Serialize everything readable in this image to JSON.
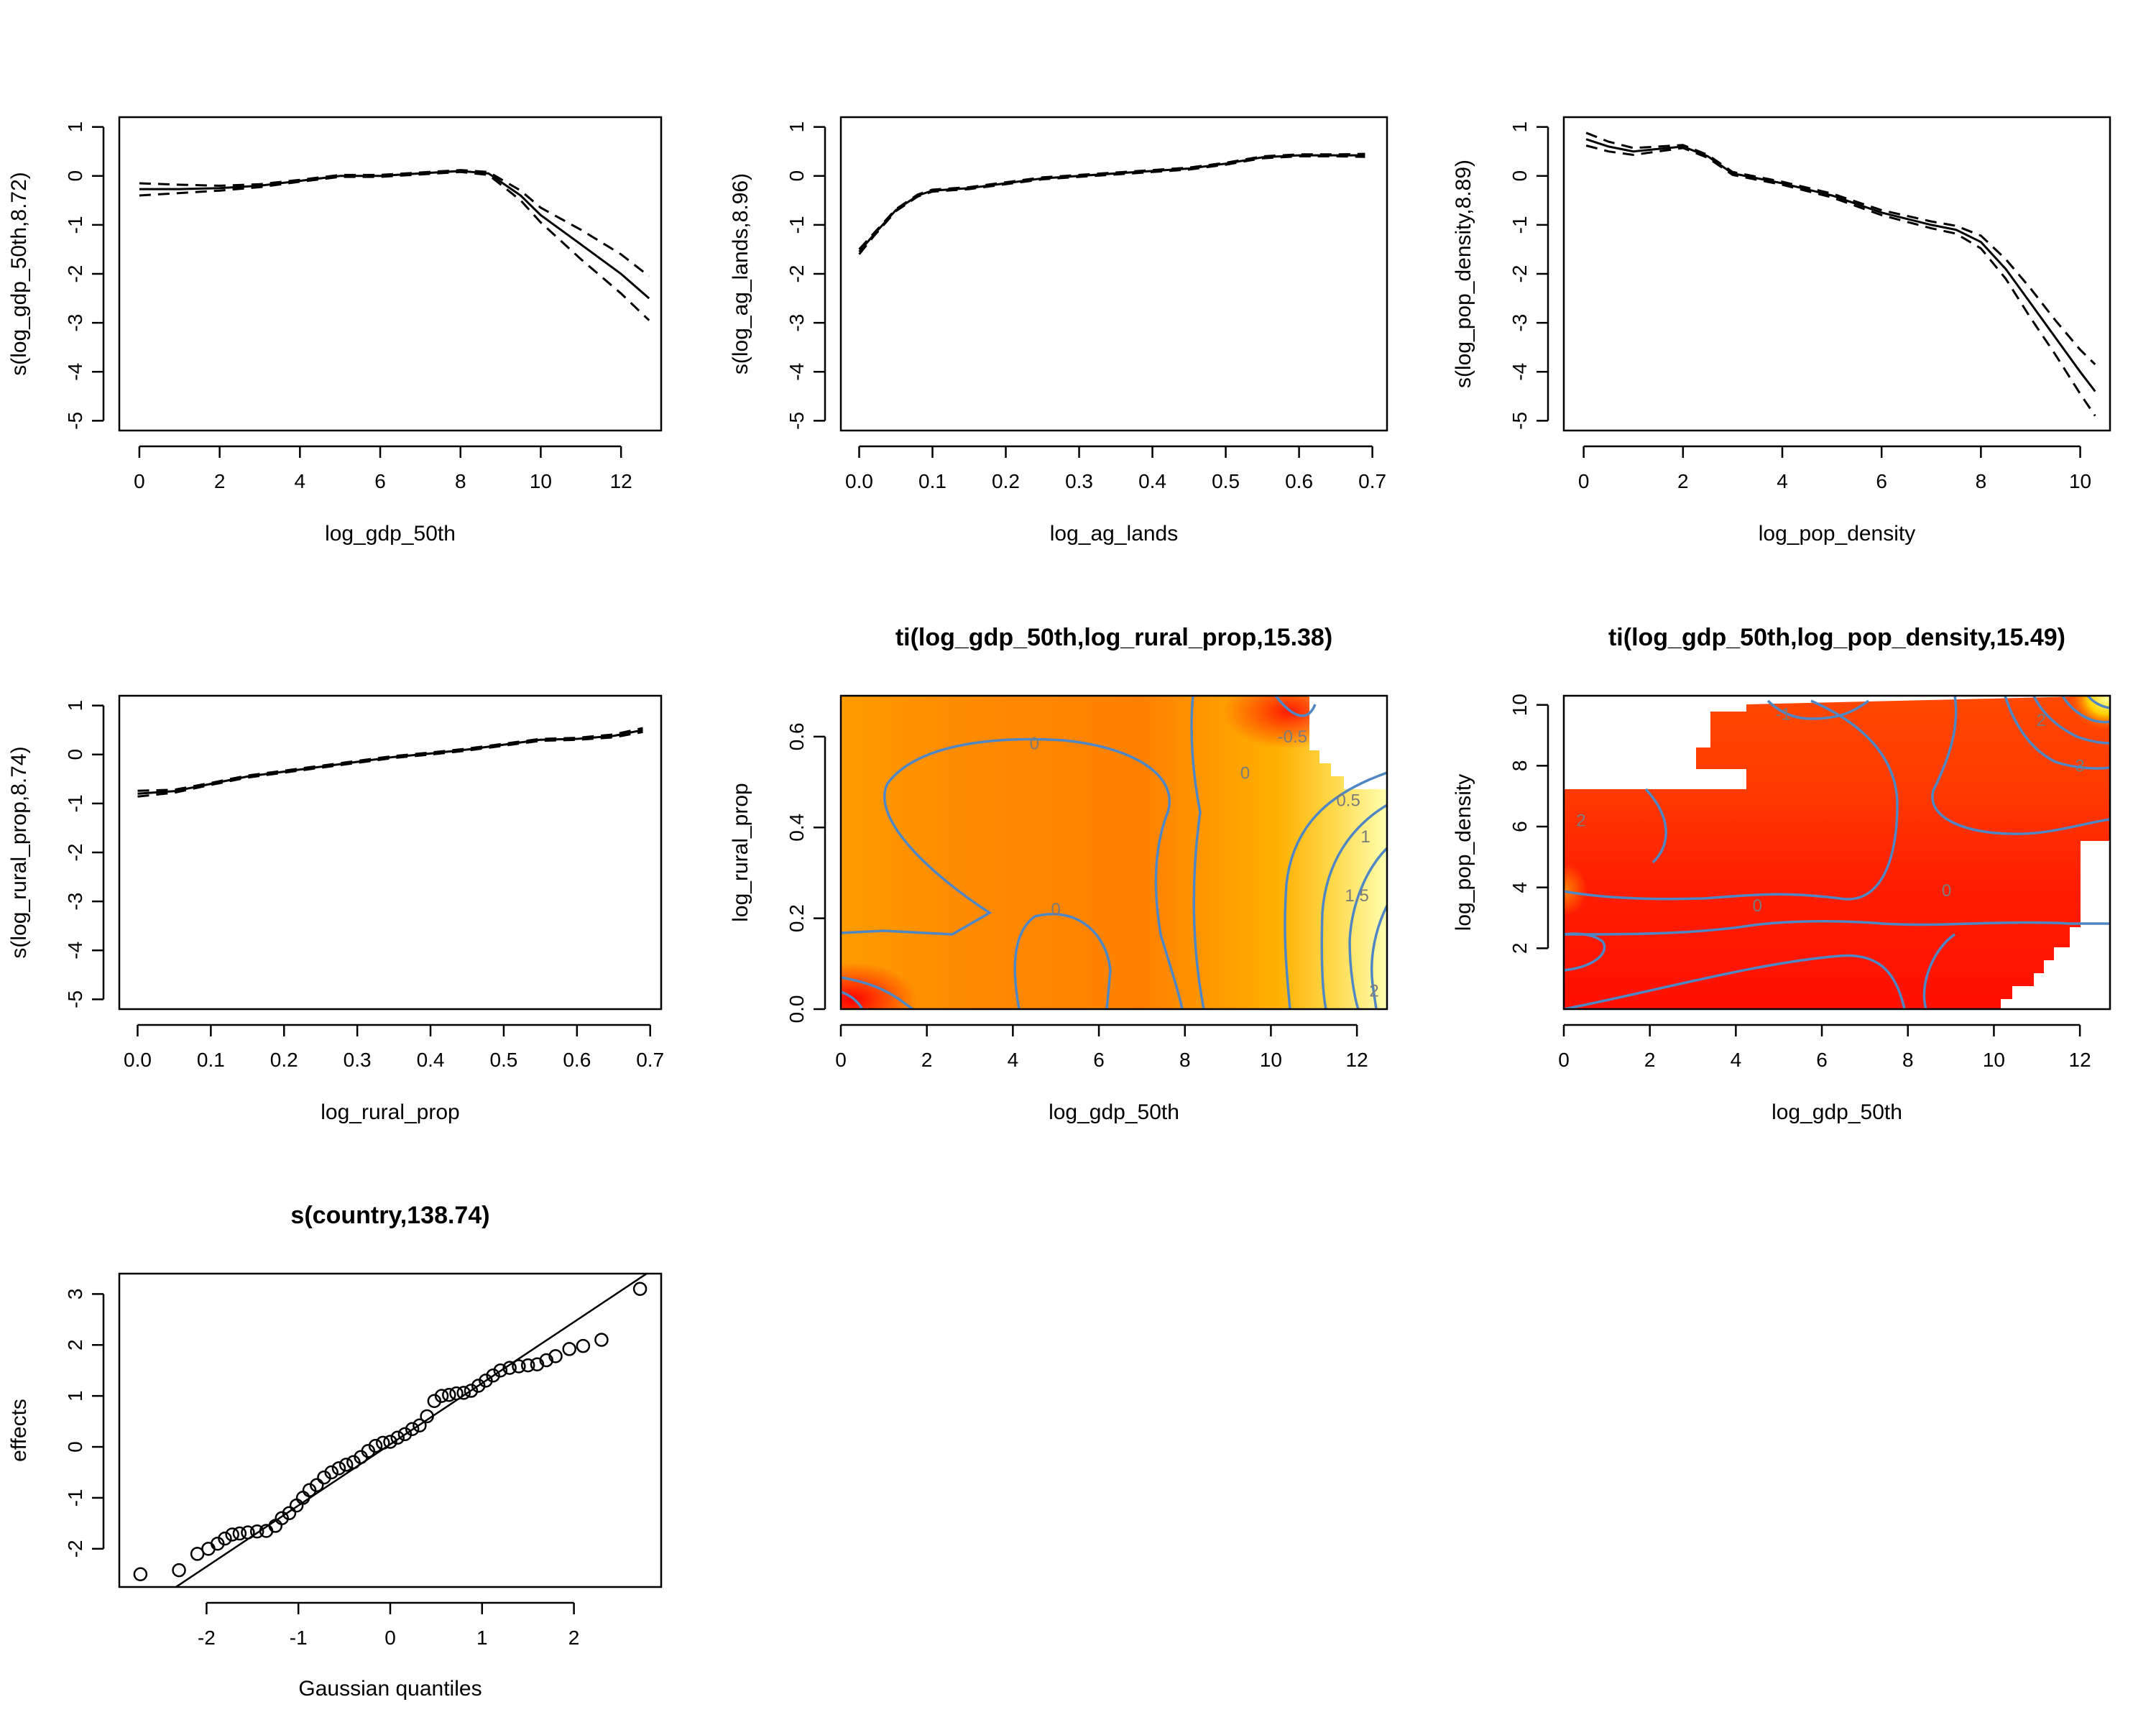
{
  "colors": {
    "frame": "#000000",
    "contour": "#4f87c4",
    "contour_label": "#7b7b7b",
    "heat_low": "#ff0000",
    "heat_mid": "#ff8c00",
    "heat_high": "#ffff9a"
  },
  "chart_data": [
    {
      "id": "p1",
      "type": "line",
      "title": "",
      "xlabel": "log_gdp_50th",
      "ylabel": "s(log_gdp_50th,8.72)",
      "xlim": [
        -0.5,
        13
      ],
      "ylim": [
        -5.2,
        1.2
      ],
      "xticks": [
        0,
        2,
        4,
        6,
        8,
        10,
        12
      ],
      "xtick_labels": [
        "0",
        "2",
        "4",
        "6",
        "8",
        "10",
        "12"
      ],
      "yticks": [
        1,
        0,
        -1,
        -2,
        -3,
        -4,
        -5
      ],
      "ytick_labels": [
        "1",
        "0",
        "-1",
        "-2",
        "-3",
        "-4",
        "-5"
      ],
      "series": [
        {
          "name": "fit",
          "dash": "solid",
          "x": [
            0,
            1,
            2,
            3,
            4,
            5,
            6,
            7,
            8,
            8.7,
            9.5,
            10,
            11,
            12,
            12.7
          ],
          "y": [
            -0.27,
            -0.27,
            -0.25,
            -0.2,
            -0.1,
            0,
            0,
            0.05,
            0.1,
            0.05,
            -0.4,
            -0.8,
            -1.4,
            -2.0,
            -2.5
          ]
        },
        {
          "name": "upper",
          "dash": "dashed",
          "x": [
            0,
            1,
            2,
            3,
            4,
            5,
            6,
            7,
            8,
            8.7,
            9.5,
            10,
            11,
            12,
            12.7
          ],
          "y": [
            -0.15,
            -0.18,
            -0.2,
            -0.17,
            -0.08,
            0.02,
            0.02,
            0.07,
            0.12,
            0.08,
            -0.3,
            -0.65,
            -1.1,
            -1.6,
            -2.05
          ]
        },
        {
          "name": "lower",
          "dash": "dashed",
          "x": [
            0,
            1,
            2,
            3,
            4,
            5,
            6,
            7,
            8,
            8.7,
            9.5,
            10,
            11,
            12,
            12.7
          ],
          "y": [
            -0.4,
            -0.35,
            -0.3,
            -0.23,
            -0.12,
            -0.02,
            -0.02,
            0.03,
            0.08,
            0.02,
            -0.5,
            -0.95,
            -1.7,
            -2.4,
            -2.95
          ]
        }
      ]
    },
    {
      "id": "p2",
      "type": "line",
      "title": "",
      "xlabel": "log_ag_lands",
      "ylabel": "s(log_ag_lands,8.96)",
      "xlim": [
        -0.025,
        0.72
      ],
      "ylim": [
        -5.2,
        1.2
      ],
      "xticks": [
        0,
        0.1,
        0.2,
        0.3,
        0.4,
        0.5,
        0.6,
        0.7
      ],
      "xtick_labels": [
        "0.0",
        "0.1",
        "0.2",
        "0.3",
        "0.4",
        "0.5",
        "0.6",
        "0.7"
      ],
      "yticks": [
        1,
        0,
        -1,
        -2,
        -3,
        -4,
        -5
      ],
      "ytick_labels": [
        "1",
        "0",
        "-1",
        "-2",
        "-3",
        "-4",
        "-5"
      ],
      "series": [
        {
          "name": "fit",
          "dash": "solid",
          "x": [
            0,
            0.02,
            0.05,
            0.08,
            0.1,
            0.15,
            0.2,
            0.25,
            0.3,
            0.35,
            0.4,
            0.45,
            0.5,
            0.55,
            0.6,
            0.65,
            0.69
          ],
          "y": [
            -1.55,
            -1.2,
            -0.7,
            -0.4,
            -0.3,
            -0.25,
            -0.15,
            -0.05,
            0,
            0.05,
            0.1,
            0.15,
            0.25,
            0.38,
            0.42,
            0.42,
            0.42
          ]
        },
        {
          "name": "upper",
          "dash": "dashed",
          "x": [
            0,
            0.02,
            0.05,
            0.08,
            0.1,
            0.15,
            0.2,
            0.25,
            0.3,
            0.35,
            0.4,
            0.45,
            0.5,
            0.55,
            0.6,
            0.65,
            0.69
          ],
          "y": [
            -1.5,
            -1.17,
            -0.68,
            -0.38,
            -0.28,
            -0.23,
            -0.13,
            -0.03,
            0.02,
            0.07,
            0.12,
            0.17,
            0.27,
            0.4,
            0.44,
            0.44,
            0.45
          ]
        },
        {
          "name": "lower",
          "dash": "dashed",
          "x": [
            0,
            0.02,
            0.05,
            0.08,
            0.1,
            0.15,
            0.2,
            0.25,
            0.3,
            0.35,
            0.4,
            0.45,
            0.5,
            0.55,
            0.6,
            0.65,
            0.69
          ],
          "y": [
            -1.6,
            -1.23,
            -0.72,
            -0.42,
            -0.32,
            -0.27,
            -0.17,
            -0.07,
            -0.02,
            0.03,
            0.08,
            0.13,
            0.23,
            0.36,
            0.4,
            0.4,
            0.39
          ]
        }
      ]
    },
    {
      "id": "p3",
      "type": "line",
      "title": "",
      "xlabel": "log_pop_density",
      "ylabel": "s(log_pop_density,8.89)",
      "xlim": [
        -0.4,
        10.6
      ],
      "ylim": [
        -5.2,
        1.2
      ],
      "xticks": [
        0,
        2,
        4,
        6,
        8,
        10
      ],
      "xtick_labels": [
        "0",
        "2",
        "4",
        "6",
        "8",
        "10"
      ],
      "yticks": [
        1,
        0,
        -1,
        -2,
        -3,
        -4,
        -5
      ],
      "ytick_labels": [
        "1",
        "0",
        "-1",
        "-2",
        "-3",
        "-4",
        "-5"
      ],
      "series": [
        {
          "name": "fit",
          "dash": "solid",
          "x": [
            0.05,
            0.5,
            1,
            1.5,
            2,
            2.5,
            3,
            4,
            5,
            6,
            7,
            7.5,
            8,
            8.5,
            9,
            9.5,
            10,
            10.3
          ],
          "y": [
            0.75,
            0.6,
            0.5,
            0.55,
            0.6,
            0.4,
            0.05,
            -0.15,
            -0.4,
            -0.75,
            -1.0,
            -1.1,
            -1.35,
            -1.9,
            -2.6,
            -3.3,
            -4.0,
            -4.4
          ]
        },
        {
          "name": "upper",
          "dash": "dashed",
          "x": [
            0.05,
            0.5,
            1,
            1.5,
            2,
            2.5,
            3,
            4,
            5,
            6,
            7,
            7.5,
            8,
            8.5,
            9,
            9.5,
            10,
            10.3
          ],
          "y": [
            0.88,
            0.7,
            0.57,
            0.6,
            0.63,
            0.43,
            0.08,
            -0.12,
            -0.36,
            -0.7,
            -0.93,
            -1.02,
            -1.22,
            -1.7,
            -2.3,
            -2.95,
            -3.55,
            -3.85
          ]
        },
        {
          "name": "lower",
          "dash": "dashed",
          "x": [
            0.05,
            0.5,
            1,
            1.5,
            2,
            2.5,
            3,
            4,
            5,
            6,
            7,
            7.5,
            8,
            8.5,
            9,
            9.5,
            10,
            10.3
          ],
          "y": [
            0.62,
            0.5,
            0.43,
            0.5,
            0.57,
            0.37,
            0.02,
            -0.18,
            -0.44,
            -0.8,
            -1.07,
            -1.18,
            -1.48,
            -2.1,
            -2.9,
            -3.65,
            -4.45,
            -4.9
          ]
        }
      ]
    },
    {
      "id": "p4",
      "type": "line",
      "title": "",
      "xlabel": "log_rural_prop",
      "ylabel": "s(log_rural_prop,8.74)",
      "xlim": [
        -0.025,
        0.715
      ],
      "ylim": [
        -5.2,
        1.2
      ],
      "xticks": [
        0,
        0.1,
        0.2,
        0.3,
        0.4,
        0.5,
        0.6,
        0.7
      ],
      "xtick_labels": [
        "0.0",
        "0.1",
        "0.2",
        "0.3",
        "0.4",
        "0.5",
        "0.6",
        "0.7"
      ],
      "yticks": [
        1,
        0,
        -1,
        -2,
        -3,
        -4,
        -5
      ],
      "ytick_labels": [
        "1",
        "0",
        "-1",
        "-2",
        "-3",
        "-4",
        "-5"
      ],
      "series": [
        {
          "name": "fit",
          "dash": "solid",
          "x": [
            0,
            0.05,
            0.1,
            0.15,
            0.2,
            0.25,
            0.3,
            0.35,
            0.4,
            0.45,
            0.5,
            0.55,
            0.6,
            0.65,
            0.69
          ],
          "y": [
            -0.8,
            -0.75,
            -0.6,
            -0.45,
            -0.35,
            -0.25,
            -0.15,
            -0.05,
            0.02,
            0.1,
            0.2,
            0.3,
            0.32,
            0.38,
            0.5
          ]
        },
        {
          "name": "upper",
          "dash": "dashed",
          "x": [
            0,
            0.05,
            0.1,
            0.15,
            0.2,
            0.25,
            0.3,
            0.35,
            0.4,
            0.45,
            0.5,
            0.55,
            0.6,
            0.65,
            0.69
          ],
          "y": [
            -0.74,
            -0.72,
            -0.58,
            -0.43,
            -0.33,
            -0.23,
            -0.13,
            -0.03,
            0.04,
            0.12,
            0.22,
            0.32,
            0.34,
            0.41,
            0.54
          ]
        },
        {
          "name": "lower",
          "dash": "dashed",
          "x": [
            0,
            0.05,
            0.1,
            0.15,
            0.2,
            0.25,
            0.3,
            0.35,
            0.4,
            0.45,
            0.5,
            0.55,
            0.6,
            0.65,
            0.69
          ],
          "y": [
            -0.86,
            -0.78,
            -0.62,
            -0.47,
            -0.37,
            -0.27,
            -0.17,
            -0.07,
            0,
            0.08,
            0.18,
            0.28,
            0.3,
            0.35,
            0.46
          ]
        }
      ]
    },
    {
      "id": "p5",
      "type": "heatmap",
      "title": "ti(log_gdp_50th,log_rural_prop,15.38)",
      "xlabel": "log_gdp_50th",
      "ylabel": "log_rural_prop",
      "xlim": [
        0,
        12.7
      ],
      "ylim": [
        0,
        0.69
      ],
      "xticks": [
        0,
        2,
        4,
        6,
        8,
        10,
        12
      ],
      "xtick_labels": [
        "0",
        "2",
        "4",
        "6",
        "8",
        "10",
        "12"
      ],
      "yticks": [
        0,
        0.2,
        0.4,
        0.6
      ],
      "ytick_labels": [
        "0.0",
        "0.2",
        "0.4",
        "0.6"
      ],
      "contour_labels": [
        {
          "text": "0",
          "x": 4.5,
          "y": 0.585
        },
        {
          "text": "0",
          "x": 9.4,
          "y": 0.52
        },
        {
          "text": "0",
          "x": 5.0,
          "y": 0.22
        },
        {
          "text": "0.5",
          "x": 11.8,
          "y": 0.46
        },
        {
          "text": "1",
          "x": 12.2,
          "y": 0.38
        },
        {
          "text": "1.5",
          "x": 12.0,
          "y": 0.25
        },
        {
          "text": "2",
          "x": 12.4,
          "y": 0.04
        },
        {
          "text": "-0.5",
          "x": 10.5,
          "y": 0.6
        }
      ]
    },
    {
      "id": "p6",
      "type": "heatmap",
      "title": "ti(log_gdp_50th,log_pop_density,15.49)",
      "xlabel": "log_gdp_50th",
      "ylabel": "log_pop_density",
      "xlim": [
        0,
        12.7
      ],
      "ylim": [
        0,
        10.3
      ],
      "xticks": [
        0,
        2,
        4,
        6,
        8,
        10,
        12
      ],
      "xtick_labels": [
        "0",
        "2",
        "4",
        "6",
        "8",
        "10",
        "12"
      ],
      "yticks": [
        2,
        4,
        6,
        8,
        10
      ],
      "ytick_labels": [
        "2",
        "4",
        "6",
        "8",
        "10"
      ],
      "contour_labels": [
        {
          "text": "2",
          "x": 0.4,
          "y": 6.2
        },
        {
          "text": "0",
          "x": 4.5,
          "y": 3.4
        },
        {
          "text": "0",
          "x": 8.9,
          "y": 3.9
        },
        {
          "text": "2",
          "x": 11.1,
          "y": 9.5
        },
        {
          "text": "3",
          "x": 12.0,
          "y": 8.0
        },
        {
          "text": "-1",
          "x": 5.1,
          "y": 9.7
        }
      ]
    },
    {
      "id": "p7",
      "type": "scatter",
      "title": "s(country,138.74)",
      "xlabel": "Gaussian quantiles",
      "ylabel": "effects",
      "xlim": [
        -2.95,
        2.95
      ],
      "ylim": [
        -2.75,
        3.4
      ],
      "xticks": [
        -2,
        -1,
        0,
        1,
        2
      ],
      "xtick_labels": [
        "-2",
        "-1",
        "0",
        "1",
        "2"
      ],
      "yticks": [
        -2,
        -1,
        0,
        1,
        2,
        3
      ],
      "ytick_labels": [
        "-2",
        "-1",
        "0",
        "1",
        "2",
        "3"
      ],
      "reference_line": {
        "intercept": 0.05,
        "slope": 1.2
      },
      "points": {
        "x": [
          -2.72,
          -2.3,
          -2.1,
          -1.98,
          -1.88,
          -1.8,
          -1.72,
          -1.64,
          -1.55,
          -1.45,
          -1.35,
          -1.25,
          -1.18,
          -1.1,
          -1.02,
          -0.95,
          -0.88,
          -0.8,
          -0.72,
          -0.64,
          -0.56,
          -0.48,
          -0.4,
          -0.32,
          -0.24,
          -0.16,
          -0.08,
          0,
          0.08,
          0.16,
          0.24,
          0.32,
          0.4,
          0.48,
          0.56,
          0.64,
          0.72,
          0.8,
          0.88,
          0.96,
          1.04,
          1.12,
          1.2,
          1.3,
          1.4,
          1.5,
          1.6,
          1.7,
          1.8,
          1.95,
          2.1,
          2.3,
          2.72
        ],
        "y": [
          -2.5,
          -2.42,
          -2.1,
          -2.0,
          -1.9,
          -1.8,
          -1.72,
          -1.7,
          -1.68,
          -1.66,
          -1.65,
          -1.55,
          -1.4,
          -1.3,
          -1.15,
          -1.0,
          -0.85,
          -0.75,
          -0.6,
          -0.5,
          -0.42,
          -0.35,
          -0.3,
          -0.2,
          -0.08,
          0.02,
          0.08,
          0.1,
          0.18,
          0.25,
          0.35,
          0.42,
          0.6,
          0.9,
          1.0,
          1.02,
          1.05,
          1.06,
          1.1,
          1.2,
          1.3,
          1.4,
          1.5,
          1.55,
          1.58,
          1.6,
          1.62,
          1.7,
          1.78,
          1.92,
          1.98,
          2.1,
          3.1
        ]
      }
    }
  ]
}
